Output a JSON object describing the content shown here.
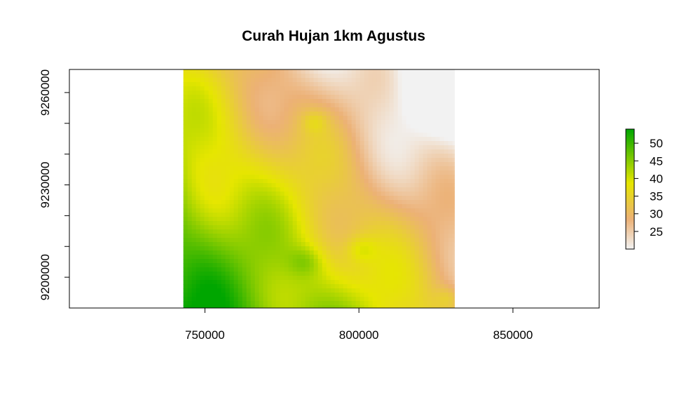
{
  "chart_data": {
    "type": "heatmap",
    "title": "Curah Hujan 1km Agustus",
    "xlabel": "",
    "ylabel": "",
    "xlim": [
      706000,
      878000
    ],
    "ylim": [
      9190000,
      9267500
    ],
    "raster_extent": {
      "x": [
        743000,
        831000
      ],
      "y": [
        9190000,
        9267500
      ]
    },
    "x_ticks": [
      750000,
      800000,
      850000
    ],
    "x_tick_labels": [
      "750000",
      "800000",
      "850000"
    ],
    "y_ticks": [
      9200000,
      9210000,
      9220000,
      9230000,
      9240000,
      9250000,
      9260000
    ],
    "y_tick_labels": [
      "9200000",
      "",
      "",
      "9230000",
      "",
      "",
      "9260000"
    ],
    "value_range": [
      20,
      54
    ],
    "legend": {
      "placement": "right",
      "ticks": [
        25,
        30,
        35,
        40,
        45,
        50
      ],
      "tick_labels": [
        "25",
        "30",
        "35",
        "40",
        "45",
        "50"
      ]
    },
    "colors": {
      "high": "#00a600",
      "mid": "#e6e600",
      "low_mid": "#ecb176",
      "low": "#f2f2f2"
    },
    "grid": false
  }
}
